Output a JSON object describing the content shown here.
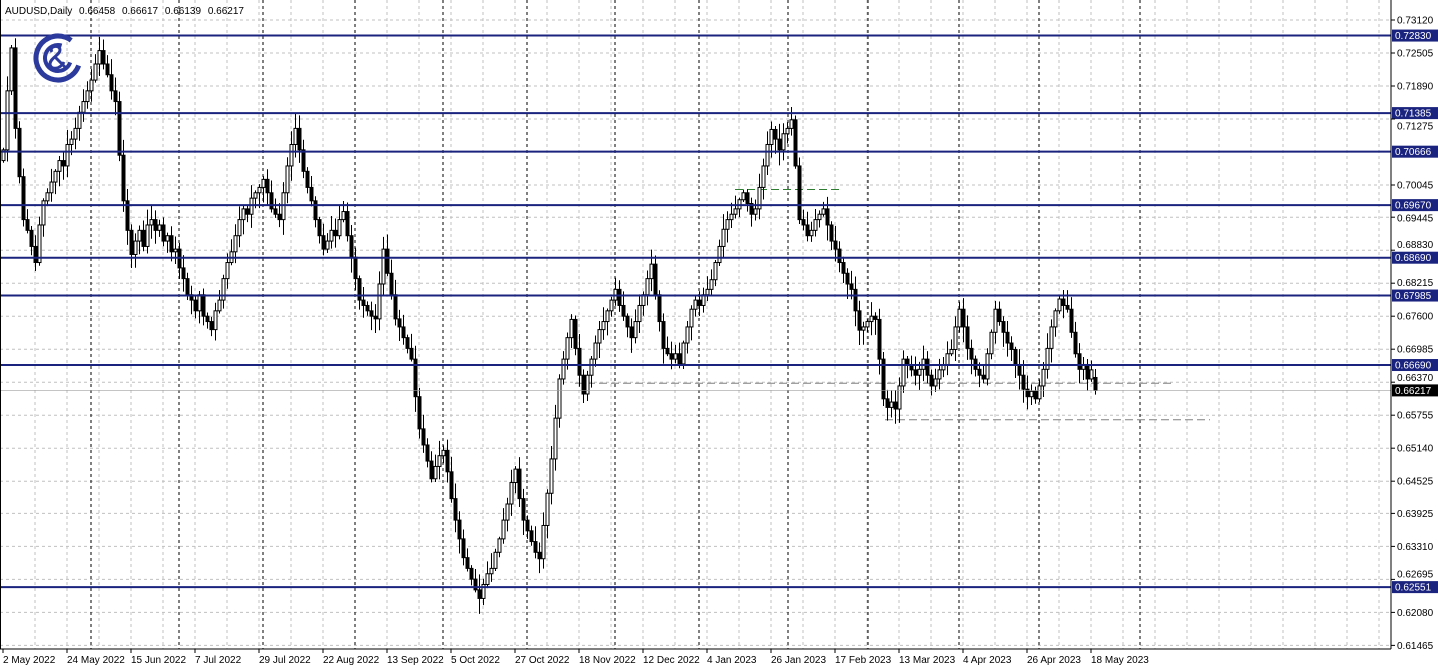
{
  "header": {
    "symbol": "AUDUSD,Daily",
    "ohlc": [
      "0.66458",
      "0.66617",
      "0.66139",
      "0.66217"
    ]
  },
  "logo": {
    "icon": "gc-ampersand-logo",
    "color": "#2b3a9c"
  },
  "colors": {
    "level_line": "#1a237e",
    "level_label_bg": "#1a237e",
    "current_price_bg": "#000000",
    "grid": "#c0c0c0",
    "bull_body": "#ffffff",
    "bear_body": "#000000",
    "green_dash": "#2e7d32"
  },
  "chart_data": {
    "type": "candlestick",
    "title": "AUDUSD,Daily",
    "ylim": [
      0.61465,
      0.7312
    ],
    "grid": true,
    "y_ticks": [
      "0.73120",
      "0.72505",
      "0.71890",
      "0.71275",
      "0.70045",
      "0.69445",
      "0.68830",
      "0.68215",
      "0.67600",
      "0.66985",
      "0.66370",
      "0.65755",
      "0.65140",
      "0.64525",
      "0.63925",
      "0.63310",
      "0.62695",
      "0.62080",
      "0.61465"
    ],
    "x_ticks": [
      "2 May 2022",
      "24 May 2022",
      "15 Jun 2022",
      "7 Jul 2022",
      "29 Jul 2022",
      "22 Aug 2022",
      "13 Sep 2022",
      "5 Oct 2022",
      "27 Oct 2022",
      "18 Nov 2022",
      "12 Dec 2022",
      "4 Jan 2023",
      "26 Jan 2023",
      "17 Feb 2023",
      "13 Mar 2023",
      "4 Apr 2023",
      "26 Apr 2023",
      "18 May 2023"
    ],
    "levels": [
      "0.72830",
      "0.71385",
      "0.70666",
      "0.69670",
      "0.68690",
      "0.67985",
      "0.66690",
      "0.62551"
    ],
    "current_price": "0.66217",
    "dashed_levels": [
      {
        "price": 0.6996,
        "color": "green"
      },
      {
        "price": 0.6635,
        "color": "gray"
      },
      {
        "price": 0.6567,
        "color": "gray"
      }
    ],
    "last_candle": {
      "open": 0.66458,
      "high": 0.66617,
      "low": 0.66139,
      "close": 0.66217
    },
    "closes": [
      0.707,
      0.718,
      0.726,
      0.711,
      0.702,
      0.694,
      0.692,
      0.689,
      0.686,
      0.693,
      0.6975,
      0.699,
      0.701,
      0.703,
      0.705,
      0.704,
      0.708,
      0.709,
      0.711,
      0.714,
      0.716,
      0.718,
      0.72,
      0.723,
      0.7255,
      0.723,
      0.721,
      0.718,
      0.716,
      0.706,
      0.6975,
      0.692,
      0.6875,
      0.69,
      0.692,
      0.689,
      0.693,
      0.694,
      0.692,
      0.693,
      0.69,
      0.691,
      0.688,
      0.6885,
      0.685,
      0.683,
      0.68,
      0.679,
      0.677,
      0.68,
      0.676,
      0.675,
      0.6735,
      0.677,
      0.679,
      0.683,
      0.686,
      0.688,
      0.691,
      0.694,
      0.696,
      0.695,
      0.698,
      0.699,
      0.7,
      0.7015,
      0.699,
      0.696,
      0.695,
      0.694,
      0.699,
      0.704,
      0.708,
      0.711,
      0.707,
      0.703,
      0.7,
      0.6975,
      0.694,
      0.691,
      0.6885,
      0.69,
      0.692,
      0.691,
      0.694,
      0.6955,
      0.691,
      0.687,
      0.683,
      0.679,
      0.678,
      0.677,
      0.676,
      0.6755,
      0.682,
      0.6885,
      0.684,
      0.68,
      0.6755,
      0.674,
      0.672,
      0.67,
      0.668,
      0.661,
      0.655,
      0.652,
      0.649,
      0.6457,
      0.648,
      0.65,
      0.651,
      0.647,
      0.642,
      0.638,
      0.6345,
      0.631,
      0.629,
      0.627,
      0.625,
      0.6234,
      0.626,
      0.628,
      0.629,
      0.632,
      0.6345,
      0.638,
      0.641,
      0.645,
      0.6475,
      0.642,
      0.638,
      0.636,
      0.634,
      0.632,
      0.6308,
      0.637,
      0.643,
      0.6494,
      0.657,
      0.6643,
      0.668,
      0.672,
      0.6754,
      0.67,
      0.665,
      0.6615,
      0.665,
      0.668,
      0.671,
      0.6735,
      0.675,
      0.677,
      0.679,
      0.681,
      0.678,
      0.676,
      0.674,
      0.672,
      0.675,
      0.678,
      0.68,
      0.683,
      0.6857,
      0.68,
      0.675,
      0.67,
      0.669,
      0.668,
      0.669,
      0.6671,
      0.671,
      0.674,
      0.6773,
      0.679,
      0.678,
      0.68,
      0.681,
      0.6828,
      0.686,
      0.689,
      0.6922,
      0.694,
      0.695,
      0.696,
      0.6977,
      0.699,
      0.697,
      0.695,
      0.696,
      0.7,
      0.704,
      0.708,
      0.7108,
      0.709,
      0.707,
      0.71,
      0.711,
      0.7126,
      0.704,
      0.694,
      0.693,
      0.691,
      0.692,
      0.694,
      0.695,
      0.696,
      0.693,
      0.69,
      0.6885,
      0.686,
      0.684,
      0.682,
      0.681,
      0.677,
      0.6734,
      0.674,
      0.675,
      0.676,
      0.6754,
      0.668,
      0.6606,
      0.659,
      0.66,
      0.6587,
      0.663,
      0.668,
      0.667,
      0.666,
      0.665,
      0.6661,
      0.668,
      0.665,
      0.663,
      0.6643,
      0.666,
      0.667,
      0.669,
      0.6698,
      0.674,
      0.6773,
      0.674,
      0.67,
      0.668,
      0.6661,
      0.665,
      0.6643,
      0.669,
      0.673,
      0.6773,
      0.675,
      0.673,
      0.671,
      0.6698,
      0.667,
      0.665,
      0.6624,
      0.661,
      0.662,
      0.6606,
      0.663,
      0.6661,
      0.67,
      0.674,
      0.677,
      0.6792,
      0.678,
      0.6773,
      0.673,
      0.669,
      0.6661,
      0.667,
      0.6643,
      0.666,
      0.6646
    ]
  }
}
